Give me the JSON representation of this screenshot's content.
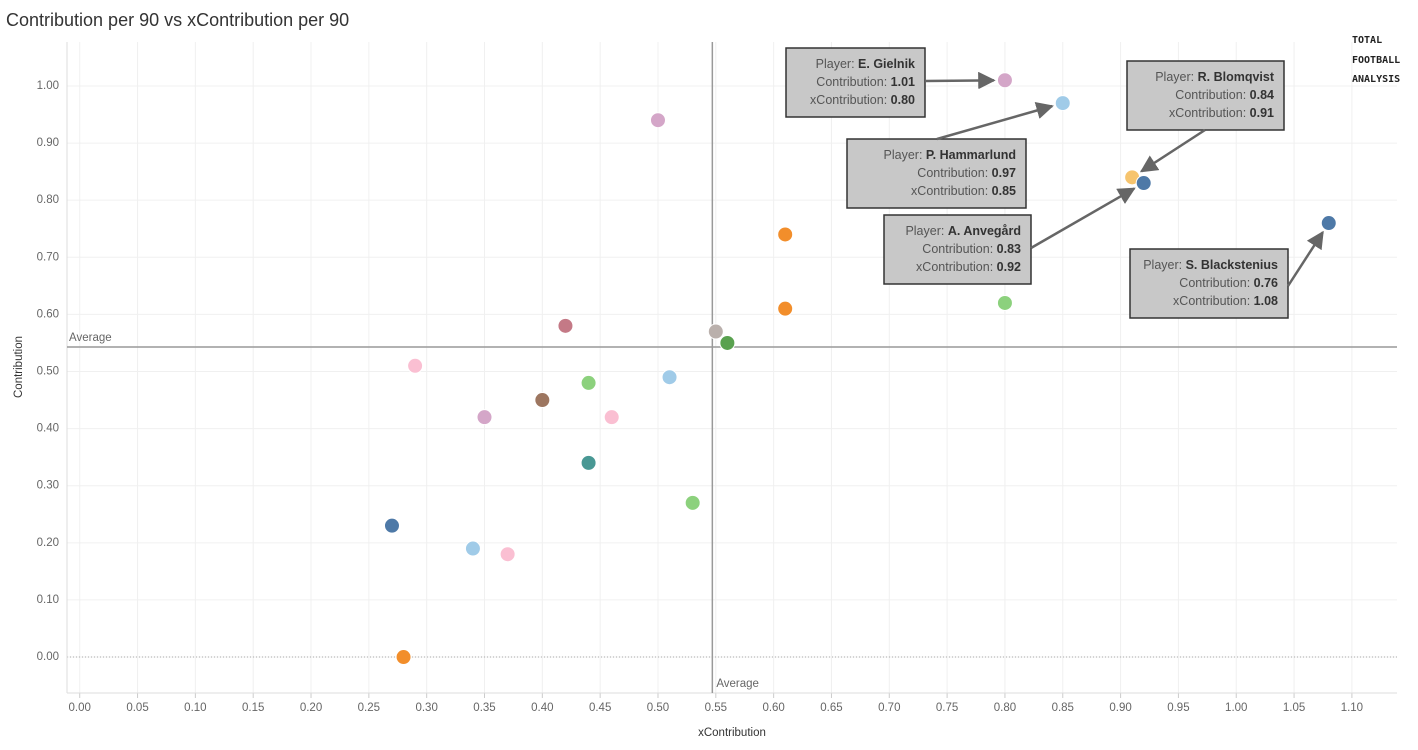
{
  "chart_data": {
    "type": "scatter",
    "title": "Contribution per 90 vs xContribution per 90",
    "x_label": "xContribution",
    "y_label": "Contribution",
    "logo": [
      "TOTAL",
      "FOOTBALL",
      "ANALYSIS"
    ],
    "xlim": [
      -0.011,
      1.139
    ],
    "ylim": [
      -0.063,
      1.077
    ],
    "xticks": [
      {
        "value": 0,
        "label": "0.00"
      },
      {
        "value": 0.05,
        "label": "0.05"
      },
      {
        "value": 0.1,
        "label": "0.10"
      },
      {
        "value": 0.15,
        "label": "0.15"
      },
      {
        "value": 0.2,
        "label": "0.20"
      },
      {
        "value": 0.25,
        "label": "0.25"
      },
      {
        "value": 0.3,
        "label": "0.30"
      },
      {
        "value": 0.35,
        "label": "0.35"
      },
      {
        "value": 0.4,
        "label": "0.40"
      },
      {
        "value": 0.45,
        "label": "0.45"
      },
      {
        "value": 0.5,
        "label": "0.50"
      },
      {
        "value": 0.55,
        "label": "0.55"
      },
      {
        "value": 0.6,
        "label": "0.60"
      },
      {
        "value": 0.65,
        "label": "0.65"
      },
      {
        "value": 0.7,
        "label": "0.70"
      },
      {
        "value": 0.75,
        "label": "0.75"
      },
      {
        "value": 0.8,
        "label": "0.80"
      },
      {
        "value": 0.85,
        "label": "0.85"
      },
      {
        "value": 0.9,
        "label": "0.90"
      },
      {
        "value": 0.95,
        "label": "0.95"
      },
      {
        "value": 1,
        "label": "1.00"
      },
      {
        "value": 1.05,
        "label": "1.05"
      },
      {
        "value": 1.1,
        "label": "1.10"
      }
    ],
    "yticks": [
      {
        "value": 0,
        "label": "0.00"
      },
      {
        "value": 0.1,
        "label": "0.10"
      },
      {
        "value": 0.2,
        "label": "0.20"
      },
      {
        "value": 0.3,
        "label": "0.30"
      },
      {
        "value": 0.4,
        "label": "0.40"
      },
      {
        "value": 0.5,
        "label": "0.50"
      },
      {
        "value": 0.6,
        "label": "0.60"
      },
      {
        "value": 0.7,
        "label": "0.70"
      },
      {
        "value": 0.8,
        "label": "0.80"
      },
      {
        "value": 0.9,
        "label": "0.90"
      },
      {
        "value": 1,
        "label": "1.00"
      }
    ],
    "grid": true,
    "reference_lines": [
      {
        "axis": "y",
        "value": 0.543,
        "label": "Average"
      },
      {
        "axis": "x",
        "value": 0.547,
        "label": "Average"
      }
    ],
    "x": [
      0.8,
      0.85,
      0.91,
      0.92,
      1.08,
      0.5,
      0.61,
      0.61,
      0.8,
      0.42,
      0.55,
      0.56,
      0.29,
      0.44,
      0.51,
      0.35,
      0.4,
      0.46,
      0.44,
      0.53,
      0.27,
      0.34,
      0.37,
      0.28
    ],
    "values": [
      1.01,
      0.97,
      0.84,
      0.83,
      0.76,
      0.94,
      0.74,
      0.61,
      0.62,
      0.58,
      0.57,
      0.55,
      0.51,
      0.48,
      0.49,
      0.42,
      0.45,
      0.42,
      0.34,
      0.27,
      0.23,
      0.19,
      0.18,
      0.0
    ],
    "colors": [
      "#d4a6c8",
      "#a0cbe8",
      "#f6c46e",
      "#4e79a7",
      "#4e79a7",
      "#d4a6c8",
      "#f28e2b",
      "#f28e2b",
      "#8cd17d",
      "#c47986",
      "#bab0ac",
      "#59a14f",
      "#fabfd2",
      "#8cd17d",
      "#a0cbe8",
      "#d4a6c8",
      "#9d7660",
      "#fabfd2",
      "#499894",
      "#8cd17d",
      "#4e79a7",
      "#a0cbe8",
      "#fabfd2",
      "#f28e2b"
    ],
    "annotations": [
      {
        "lines": [
          [
            "Player:",
            "E. Gielnik"
          ],
          [
            "Contribution:",
            "1.01"
          ],
          [
            "xContribution:",
            "0.80"
          ]
        ]
      },
      {
        "lines": [
          [
            "Player:",
            "P. Hammarlund"
          ],
          [
            "Contribution:",
            "0.97"
          ],
          [
            "xContribution:",
            "0.85"
          ]
        ]
      },
      {
        "lines": [
          [
            "Player:",
            "R. Blomqvist"
          ],
          [
            "Contribution:",
            "0.84"
          ],
          [
            "xContribution:",
            "0.91"
          ]
        ]
      },
      {
        "lines": [
          [
            "Player:",
            "A. Anvegård"
          ],
          [
            "Contribution:",
            "0.83"
          ],
          [
            "xContribution:",
            "0.92"
          ]
        ]
      },
      {
        "lines": [
          [
            "Player:",
            "S. Blackstenius"
          ],
          [
            "Contribution:",
            "0.76"
          ],
          [
            "xContribution:",
            "1.08"
          ]
        ]
      }
    ]
  }
}
